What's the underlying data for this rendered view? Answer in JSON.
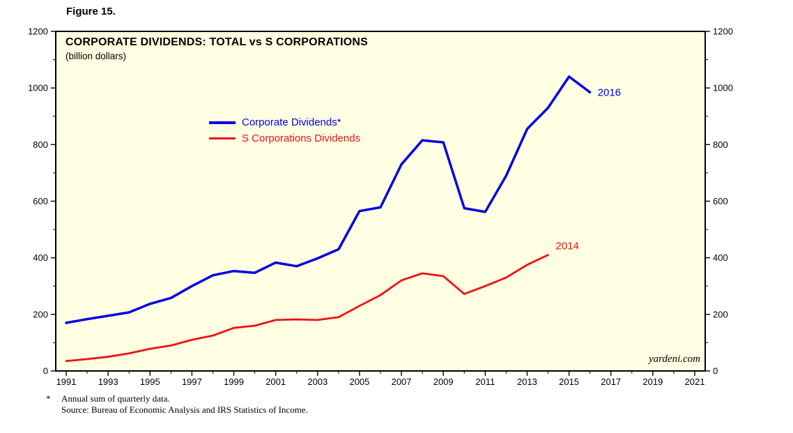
{
  "figure": {
    "label": "Figure 15."
  },
  "chart_data": {
    "type": "line",
    "title": "CORPORATE DIVIDENDS: TOTAL vs S CORPORATIONS",
    "subtitle": "(billion dollars)",
    "xlim": [
      1990.5,
      2021.5
    ],
    "ylim": [
      0,
      1200
    ],
    "yticks": [
      0,
      200,
      400,
      600,
      800,
      1000,
      1200
    ],
    "ytick_minor": [
      100,
      300,
      500,
      700,
      900,
      1100
    ],
    "xticks_labeled": [
      1991,
      1993,
      1995,
      1997,
      1999,
      2001,
      2003,
      2005,
      2007,
      2009,
      2011,
      2013,
      2015,
      2017,
      2019,
      2021
    ],
    "xticks_minor_start": 1991,
    "xticks_minor_end": 2021,
    "grid": false,
    "legend_position": "upper-left-inside",
    "plot_bg": "#FFFFE3",
    "border_color": "#000000",
    "series": [
      {
        "name": "Corporate Dividends*",
        "color": "#0000E0",
        "width": 3.5,
        "end_label": "2016",
        "x": [
          1991,
          1992,
          1993,
          1994,
          1995,
          1996,
          1997,
          1998,
          1999,
          2000,
          2001,
          2002,
          2003,
          2004,
          2005,
          2006,
          2007,
          2008,
          2009,
          2010,
          2011,
          2012,
          2013,
          2014,
          2015,
          2016
        ],
        "values": [
          170,
          183,
          195,
          207,
          237,
          258,
          300,
          338,
          353,
          347,
          383,
          370,
          398,
          430,
          565,
          578,
          730,
          815,
          808,
          575,
          562,
          690,
          855,
          930,
          1040,
          985
        ]
      },
      {
        "name": "S Corporations Dividends",
        "color": "#EE1111",
        "width": 2.8,
        "end_label": "2014",
        "x": [
          1991,
          1992,
          1993,
          1994,
          1995,
          1996,
          1997,
          1998,
          1999,
          2000,
          2001,
          2002,
          2003,
          2004,
          2005,
          2006,
          2007,
          2008,
          2009,
          2010,
          2011,
          2012,
          2013,
          2014
        ],
        "values": [
          35,
          42,
          50,
          62,
          78,
          90,
          110,
          125,
          152,
          160,
          180,
          182,
          180,
          190,
          230,
          268,
          320,
          345,
          335,
          272,
          300,
          330,
          375,
          410
        ]
      }
    ],
    "watermark": "yardeni.com"
  },
  "footnotes": {
    "star": "*",
    "line1": "Annual sum of quarterly data.",
    "line2": "Source: Bureau of Economic Analysis and IRS Statistics of Income."
  }
}
